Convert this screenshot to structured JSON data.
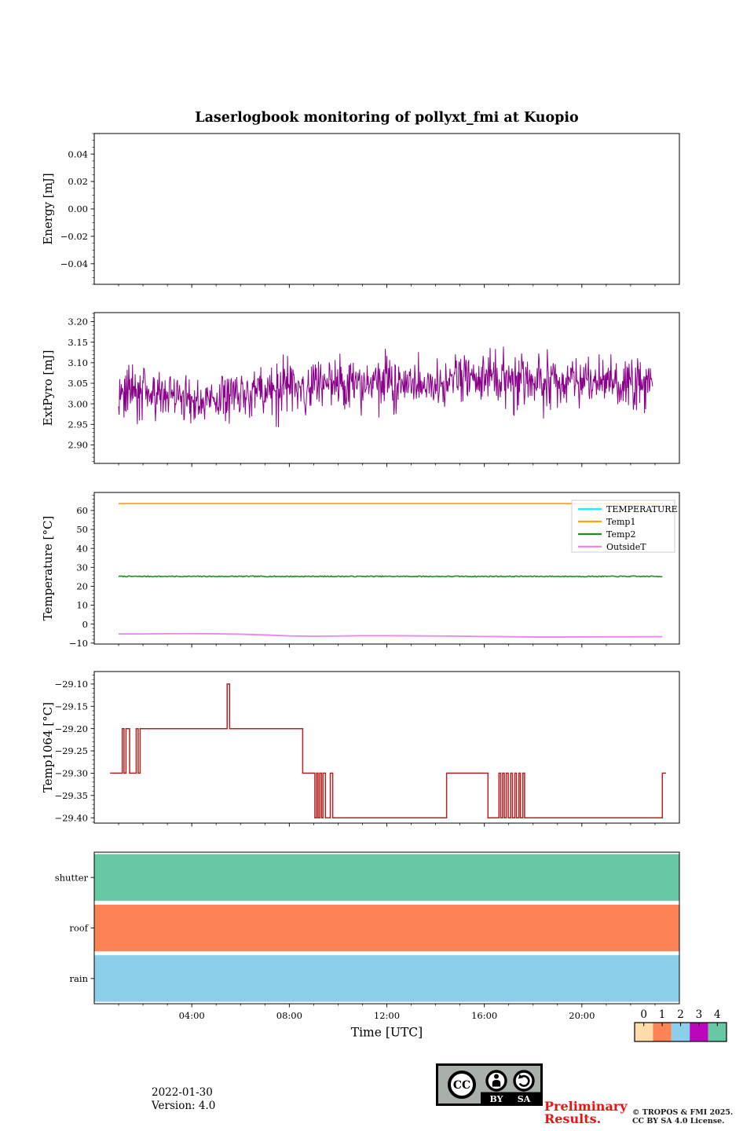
{
  "title": "Laserlogbook monitoring of pollyxt_fmi at Kuopio",
  "time_axis": {
    "label": "Time [UTC]",
    "range_hours": [
      0,
      24
    ],
    "major_ticks": [
      {
        "t": 4,
        "label": "04:00"
      },
      {
        "t": 8,
        "label": "08:00"
      },
      {
        "t": 12,
        "label": "12:00"
      },
      {
        "t": 16,
        "label": "16:00"
      },
      {
        "t": 20,
        "label": "20:00"
      }
    ],
    "minor_tick_every_hours": 1
  },
  "chart_data": [
    {
      "id": "energy",
      "type": "line",
      "ylabel": "Energy [mJ]",
      "ylim": [
        -0.055,
        0.055
      ],
      "yticks": [
        {
          "v": 0.04,
          "label": "0.04"
        },
        {
          "v": 0.02,
          "label": "0.02"
        },
        {
          "v": 0.0,
          "label": "0.00"
        },
        {
          "v": -0.02,
          "label": "−0.02"
        },
        {
          "v": -0.04,
          "label": "−0.04"
        }
      ],
      "y_minor_step": 0.005,
      "series": []
    },
    {
      "id": "extpyro",
      "type": "line",
      "ylabel": "ExtPyro [mJ]",
      "ylim": [
        2.855,
        3.222
      ],
      "yticks": [
        {
          "v": 3.2,
          "label": "3.20"
        },
        {
          "v": 3.15,
          "label": "3.15"
        },
        {
          "v": 3.1,
          "label": "3.10"
        },
        {
          "v": 3.05,
          "label": "3.05"
        },
        {
          "v": 3.0,
          "label": "3.00"
        },
        {
          "v": 2.95,
          "label": "2.95"
        },
        {
          "v": 2.9,
          "label": "2.90"
        }
      ],
      "y_minor_step": 0.01,
      "series": [
        {
          "name": "ExtPyro",
          "color": "#8B008B",
          "lw": 1,
          "style": "noise",
          "x_start": 1.0,
          "x_end": 22.9,
          "n_points": 1000,
          "seed": 42,
          "baseline_anchors": [
            [
              1,
              3.03
            ],
            [
              4,
              3.005
            ],
            [
              6,
              3.02
            ],
            [
              8,
              3.04
            ],
            [
              10,
              3.05
            ],
            [
              13,
              3.05
            ],
            [
              16,
              3.06
            ],
            [
              19,
              3.055
            ],
            [
              22.9,
              3.05
            ]
          ],
          "noise_amplitude": 0.062,
          "spike_chance": 0.02,
          "spike_size": 0.09,
          "clip": [
            2.87,
            3.2
          ]
        }
      ]
    },
    {
      "id": "temperature",
      "type": "line",
      "ylabel": "Temperature [°C]",
      "ylim": [
        -10.5,
        69.5
      ],
      "yticks": [
        {
          "v": 60,
          "label": "60"
        },
        {
          "v": 50,
          "label": "50"
        },
        {
          "v": 40,
          "label": "40"
        },
        {
          "v": 30,
          "label": "30"
        },
        {
          "v": 20,
          "label": "20"
        },
        {
          "v": 10,
          "label": "10"
        },
        {
          "v": 0,
          "label": "0"
        },
        {
          "v": -10,
          "label": "−10"
        }
      ],
      "y_minor_step": 2,
      "legend": {
        "position": "upper right",
        "entries": [
          {
            "label": "TEMPERATURE",
            "color": "#00FFFF"
          },
          {
            "label": "Temp1",
            "color": "#FFA500"
          },
          {
            "label": "Temp2",
            "color": "#228B22"
          },
          {
            "label": "OutsideT",
            "color": "#EE82EE"
          }
        ]
      },
      "series": [
        {
          "name": "TEMPERATURE",
          "color": "#00FFFF",
          "lw": 1.6,
          "style": "points",
          "points": []
        },
        {
          "name": "Temp1",
          "color": "#FFA500",
          "lw": 1.8,
          "style": "points",
          "points": [
            [
              1.0,
              63.6
            ],
            [
              23.3,
              63.6
            ]
          ]
        },
        {
          "name": "Temp2",
          "color": "#228B22",
          "lw": 1.6,
          "style": "noisy-flat",
          "value": 25.2,
          "noise": 0.5,
          "x_start": 1.0,
          "x_end": 23.3,
          "n_points": 500,
          "seed": 7
        },
        {
          "name": "OutsideT",
          "color": "#EE82EE",
          "lw": 1.8,
          "style": "points",
          "points": [
            [
              1.0,
              -5.2
            ],
            [
              2,
              -5.15
            ],
            [
              3,
              -5.05
            ],
            [
              4,
              -5.0
            ],
            [
              5,
              -5.1
            ],
            [
              6,
              -5.3
            ],
            [
              7,
              -5.7
            ],
            [
              8,
              -6.2
            ],
            [
              9,
              -6.4
            ],
            [
              10,
              -6.25
            ],
            [
              11,
              -6.1
            ],
            [
              12,
              -6.1
            ],
            [
              13,
              -6.15
            ],
            [
              14,
              -6.25
            ],
            [
              15,
              -6.35
            ],
            [
              16,
              -6.5
            ],
            [
              17,
              -6.65
            ],
            [
              18,
              -6.8
            ],
            [
              19,
              -6.8
            ],
            [
              20,
              -6.75
            ],
            [
              21,
              -6.7
            ],
            [
              22,
              -6.7
            ],
            [
              23.3,
              -6.6
            ]
          ]
        }
      ]
    },
    {
      "id": "temp1064",
      "type": "step",
      "ylabel": "Temp1064 [°C]",
      "ylim": [
        -29.412,
        -29.072
      ],
      "yticks": [
        {
          "v": -29.1,
          "label": "−29.10"
        },
        {
          "v": -29.15,
          "label": "−29.15"
        },
        {
          "v": -29.2,
          "label": "−29.20"
        },
        {
          "v": -29.25,
          "label": "−29.25"
        },
        {
          "v": -29.3,
          "label": "−29.30"
        },
        {
          "v": -29.35,
          "label": "−29.35"
        },
        {
          "v": -29.4,
          "label": "−29.40"
        }
      ],
      "y_minor_step": 0.01,
      "series": [
        {
          "name": "Temp1064",
          "color": "#B22222",
          "lw": 1.5,
          "style": "step",
          "points": [
            [
              0.65,
              -29.3
            ],
            [
              1.15,
              -29.2
            ],
            [
              1.22,
              -29.3
            ],
            [
              1.3,
              -29.2
            ],
            [
              1.45,
              -29.3
            ],
            [
              1.72,
              -29.2
            ],
            [
              1.8,
              -29.3
            ],
            [
              1.88,
              -29.2
            ],
            [
              5.45,
              -29.1
            ],
            [
              5.55,
              -29.2
            ],
            [
              8.55,
              -29.3
            ],
            [
              9.05,
              -29.4
            ],
            [
              9.12,
              -29.3
            ],
            [
              9.18,
              -29.4
            ],
            [
              9.25,
              -29.3
            ],
            [
              9.32,
              -29.4
            ],
            [
              9.38,
              -29.3
            ],
            [
              9.48,
              -29.4
            ],
            [
              9.68,
              -29.3
            ],
            [
              9.78,
              -29.4
            ],
            [
              14.45,
              -29.3
            ],
            [
              16.15,
              -29.4
            ],
            [
              16.6,
              -29.3
            ],
            [
              16.67,
              -29.4
            ],
            [
              16.75,
              -29.3
            ],
            [
              16.82,
              -29.4
            ],
            [
              16.9,
              -29.3
            ],
            [
              16.98,
              -29.4
            ],
            [
              17.08,
              -29.3
            ],
            [
              17.15,
              -29.4
            ],
            [
              17.25,
              -29.3
            ],
            [
              17.32,
              -29.4
            ],
            [
              17.42,
              -29.3
            ],
            [
              17.48,
              -29.4
            ],
            [
              17.58,
              -29.3
            ],
            [
              17.65,
              -29.4
            ],
            [
              23.3,
              -29.3
            ],
            [
              23.45,
              -29.3
            ]
          ]
        }
      ]
    },
    {
      "id": "status",
      "type": "status-bands",
      "span_hours": [
        0,
        24
      ],
      "rows": [
        {
          "label": "shutter",
          "color": "#66C9A3",
          "value": 4
        },
        {
          "label": "roof",
          "color": "#FC8355",
          "value": 1
        },
        {
          "label": "rain",
          "color": "#8BCFEB",
          "value": 2
        }
      ]
    }
  ],
  "colorbar": {
    "values": [
      "0",
      "1",
      "2",
      "3",
      "4"
    ],
    "colors": [
      "#FDDCAC",
      "#FC8355",
      "#8BCFEB",
      "#BE05BE",
      "#66C9A3"
    ]
  },
  "footer": {
    "date": "2022-01-30",
    "version": "Version: 4.0",
    "preliminary_line1": "Preliminary",
    "preliminary_line2": "Results.",
    "preliminary_color": "#ee1111",
    "copyright_line1": "© TROPOS & FMI 2025.",
    "copyright_line2": "CC BY SA 4.0 License.",
    "cc_badge": {
      "cc": "CC",
      "by": "BY",
      "sa": "SA"
    }
  }
}
